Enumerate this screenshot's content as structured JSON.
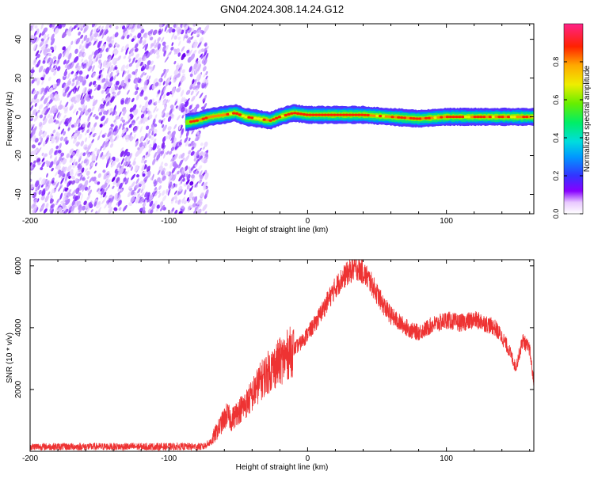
{
  "title": "GN04.2024.308.14.24.G12",
  "chart_data": [
    {
      "type": "heatmap",
      "xlabel": "Height of straight line (km)",
      "ylabel": "Frequency (Hz)",
      "xlim": [
        -200,
        163
      ],
      "ylim": [
        -50,
        48
      ],
      "x_ticks": [
        -200,
        -100,
        0,
        100
      ],
      "x_tick_labels": [
        "-200",
        "-100",
        "0",
        "100"
      ],
      "y_ticks": [
        -40,
        -20,
        0,
        20,
        40
      ],
      "y_tick_labels": [
        "-40",
        "-20",
        "0",
        "20",
        "40"
      ],
      "colorbar": {
        "label": "Normalized spectral amplitude",
        "range": [
          0,
          1
        ],
        "ticks": [
          0.0,
          0.2,
          0.4,
          0.6,
          0.8
        ],
        "tick_labels": [
          "0.0",
          "0.2",
          "0.4",
          "0.6",
          "0.8"
        ]
      },
      "noise_region_x": [
        -200,
        -76
      ],
      "signal_start_x": -88,
      "signal_band_half_width_hz": 3,
      "signal_frequency_track": [
        {
          "x": -88,
          "y": -3
        },
        {
          "x": -80,
          "y": -2
        },
        {
          "x": -70,
          "y": 0
        },
        {
          "x": -60,
          "y": 1
        },
        {
          "x": -52,
          "y": 2
        },
        {
          "x": -45,
          "y": 0
        },
        {
          "x": -35,
          "y": -1
        },
        {
          "x": -27,
          "y": -2
        },
        {
          "x": -20,
          "y": 0
        },
        {
          "x": -10,
          "y": 2
        },
        {
          "x": 0,
          "y": 1
        },
        {
          "x": 40,
          "y": 1
        },
        {
          "x": 60,
          "y": 0
        },
        {
          "x": 80,
          "y": -1
        },
        {
          "x": 100,
          "y": 0
        },
        {
          "x": 130,
          "y": 0
        },
        {
          "x": 163,
          "y": 0
        }
      ]
    },
    {
      "type": "line",
      "xlabel": "Height of straight line (km)",
      "ylabel": "SNR (10 * v/v)",
      "xlim": [
        -200,
        163
      ],
      "ylim": [
        0,
        6200
      ],
      "x_ticks": [
        -200,
        -100,
        0,
        100
      ],
      "x_tick_labels": [
        "-200",
        "-100",
        "0",
        "100"
      ],
      "y_ticks": [
        2000,
        4000,
        6000
      ],
      "y_tick_labels": [
        "2000",
        "4000",
        "6000"
      ],
      "color": "#ee3333",
      "series": [
        {
          "x": [
            -200,
            -150,
            -100,
            -75,
            -70,
            -66,
            -62,
            -58,
            -55,
            -50,
            -45,
            -40,
            -35,
            -30,
            -25,
            -20,
            -15,
            -10,
            -5,
            0,
            5,
            10,
            15,
            20,
            25,
            30,
            35,
            40,
            45,
            50,
            55,
            60,
            65,
            70,
            75,
            80,
            85,
            90,
            95,
            100,
            105,
            110,
            115,
            120,
            125,
            130,
            135,
            140,
            145,
            150,
            155,
            160,
            163
          ],
          "y": [
            150,
            150,
            150,
            150,
            300,
            600,
            900,
            1200,
            1000,
            1300,
            1500,
            1800,
            2200,
            2500,
            2700,
            2900,
            3100,
            3300,
            3500,
            3800,
            4100,
            4500,
            4900,
            5300,
            5600,
            5800,
            5950,
            5800,
            5500,
            5100,
            4700,
            4400,
            4200,
            4050,
            3900,
            3850,
            3950,
            4100,
            4150,
            4250,
            4200,
            4150,
            4200,
            4250,
            4200,
            4100,
            4000,
            3700,
            3300,
            2700,
            3600,
            3300,
            2200
          ]
        }
      ]
    }
  ]
}
